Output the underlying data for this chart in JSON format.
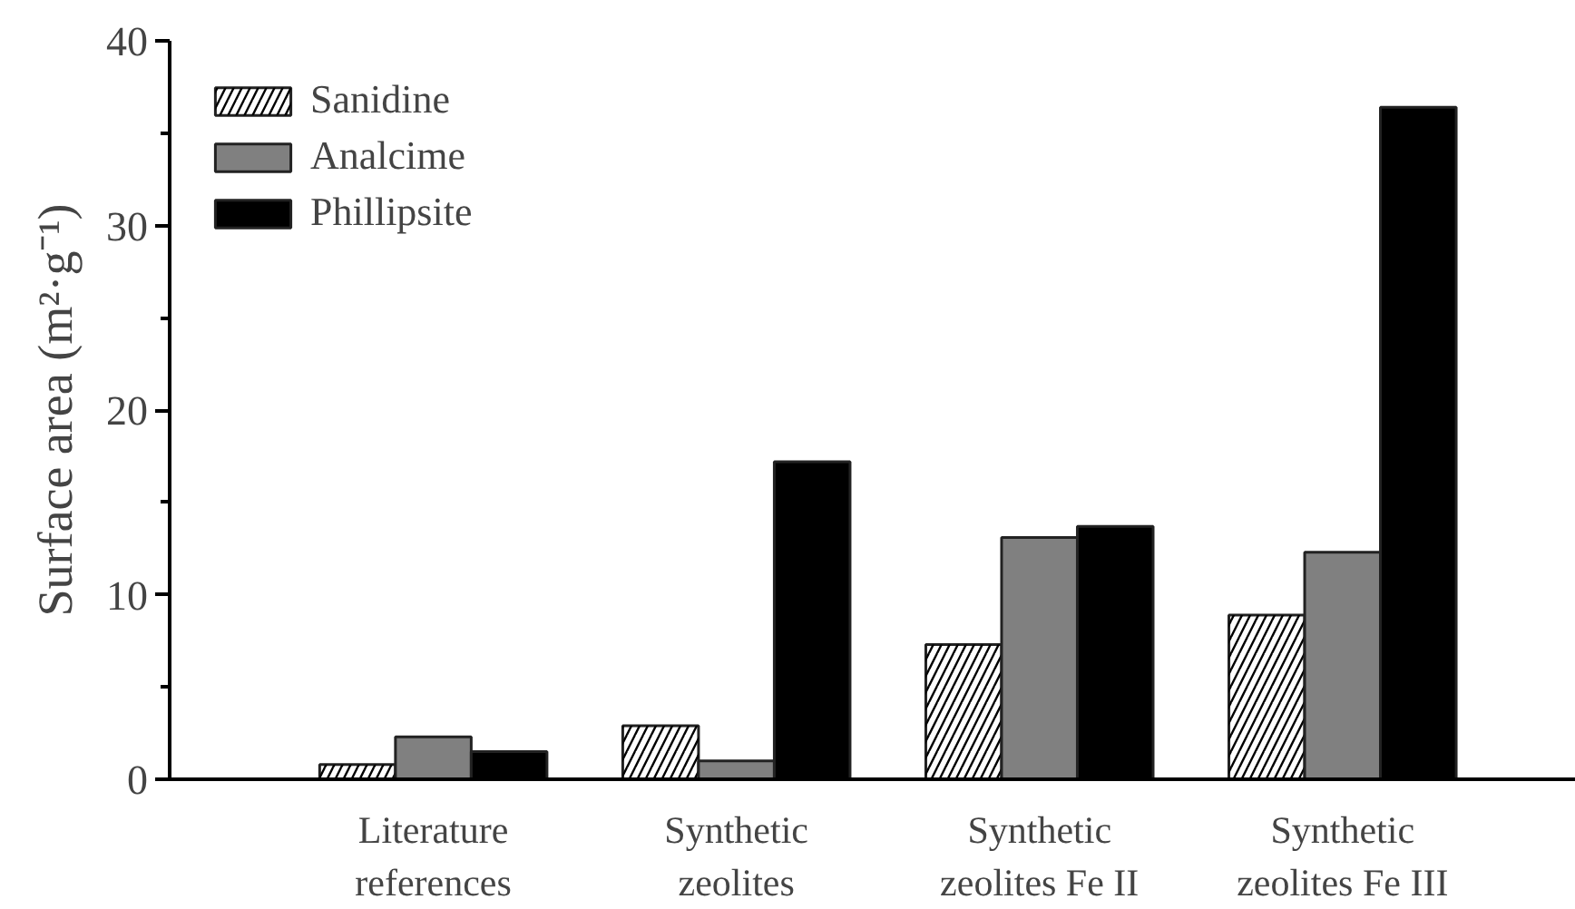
{
  "chart_data": {
    "type": "bar",
    "ylabel": "Surface area (m²·g⁻¹)",
    "categories": [
      "Literature\nreferences",
      "Synthetic\nzeolites",
      "Synthetic\nzeolites Fe II",
      "Synthetic\nzeolites Fe III"
    ],
    "series": [
      {
        "name": "Sanidine",
        "color": "#fefefe",
        "values": [
          0.8,
          2.9,
          7.3,
          8.9
        ]
      },
      {
        "name": "Analcime",
        "color": "#808080",
        "values": [
          2.3,
          1.0,
          13.1,
          12.3
        ]
      },
      {
        "name": "Phillipsite",
        "color": "#000000",
        "values": [
          1.5,
          17.2,
          13.7,
          36.4
        ]
      }
    ],
    "ylim": [
      0,
      40
    ],
    "yticks": [
      0,
      {
        "value": 5,
        "label": null
      },
      10,
      {
        "value": 15,
        "label": null
      },
      20,
      {
        "value": 25,
        "label": null
      },
      30,
      {
        "value": 35,
        "label": null
      },
      40
    ],
    "grid": false,
    "legend": "top left"
  }
}
